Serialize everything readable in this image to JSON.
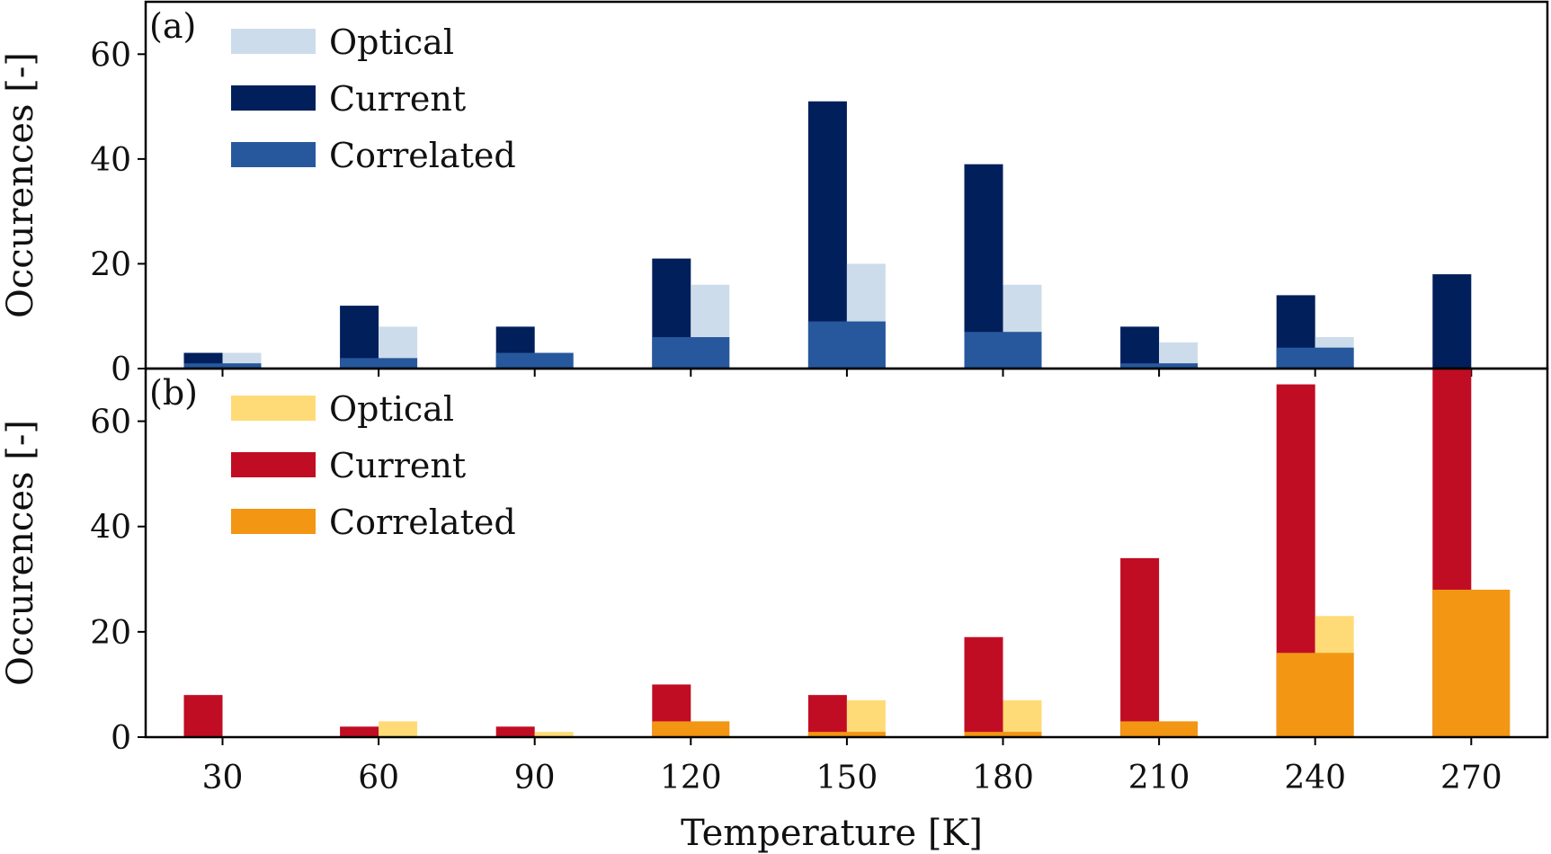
{
  "chart_data": [
    {
      "type": "bar",
      "panel_label": "(a)",
      "categories": [
        "30",
        "60",
        "90",
        "120",
        "150",
        "180",
        "210",
        "240",
        "270"
      ],
      "x": [
        30,
        60,
        90,
        120,
        150,
        180,
        210,
        240,
        270
      ],
      "series": [
        {
          "name": "Optical",
          "color": "#cddcea",
          "values": [
            3,
            8,
            3,
            16,
            20,
            16,
            5,
            6,
            0
          ]
        },
        {
          "name": "Current",
          "color": "#001f5b",
          "values": [
            3,
            12,
            8,
            21,
            51,
            39,
            8,
            14,
            18
          ]
        },
        {
          "name": "Correlated",
          "color": "#27589d",
          "values": [
            1,
            2,
            3,
            6,
            9,
            7,
            1,
            4,
            0
          ]
        }
      ],
      "ylabel": "Occurences [-]",
      "yticks": [
        0,
        20,
        40,
        60
      ],
      "ylim": [
        0,
        70
      ],
      "legend": "top-left"
    },
    {
      "type": "bar",
      "panel_label": "(b)",
      "categories": [
        "30",
        "60",
        "90",
        "120",
        "150",
        "180",
        "210",
        "240",
        "270"
      ],
      "x": [
        30,
        60,
        90,
        120,
        150,
        180,
        210,
        240,
        270
      ],
      "series": [
        {
          "name": "Optical",
          "color": "#ffdb77",
          "values": [
            0,
            3,
            1,
            3,
            7,
            7,
            3,
            23,
            28
          ]
        },
        {
          "name": "Current",
          "color": "#c00d23",
          "values": [
            8,
            2,
            2,
            10,
            8,
            19,
            34,
            67,
            74
          ]
        },
        {
          "name": "Correlated",
          "color": "#f29614",
          "values": [
            0,
            0,
            0,
            3,
            1,
            1,
            3,
            16,
            28
          ]
        }
      ],
      "ylabel": "Occurences [-]",
      "yticks": [
        0,
        20,
        40,
        60
      ],
      "ylim": [
        0,
        70
      ],
      "legend": "top-left"
    }
  ],
  "xlabel": "Temperature [K]",
  "xticks": [
    "30",
    "60",
    "90",
    "120",
    "150",
    "180",
    "210",
    "240",
    "270"
  ]
}
